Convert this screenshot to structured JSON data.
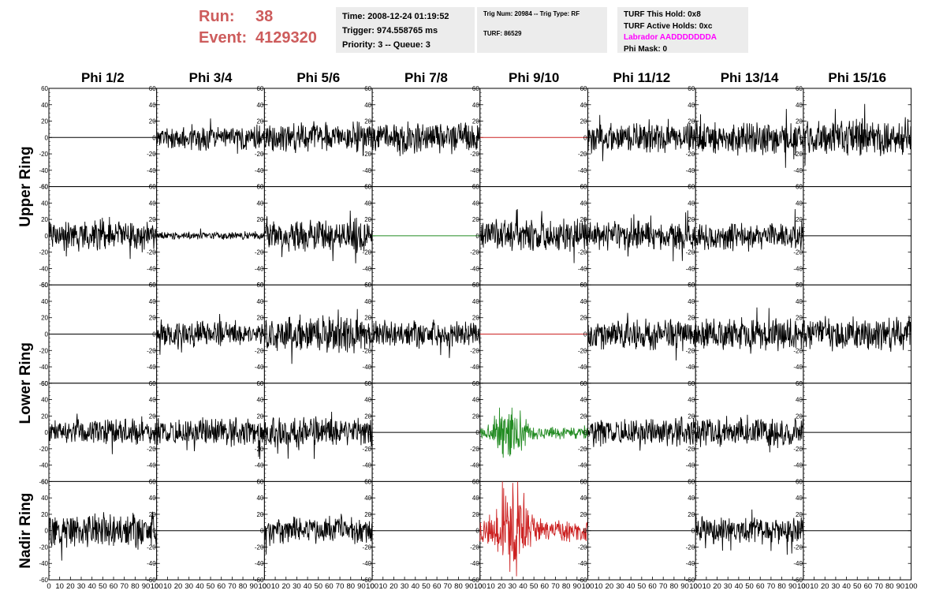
{
  "header": {
    "run_label": "Run:",
    "run_value": "38",
    "event_label": "Event:",
    "event_value": "4129320"
  },
  "info": {
    "time": "Time: 2008-12-24 01:19:52",
    "trigger": "Trigger: 974.558765 ms",
    "priority": "Priority: 3 -- Queue: 3",
    "trig_num": "Trig Num: 20984 -- Trig Type: RF",
    "turf": "TURF: 86529",
    "turf_hold": "TURF This Hold: 0x8",
    "turf_active": "TURF Active Holds: 0xc",
    "labrador": "Labrador AADDDDDDDA",
    "phi_mask": "Phi Mask: 0"
  },
  "colors": {
    "header_red": "#cd5c5c",
    "info_bg": "#ececec",
    "labrador_magenta": "#ff00ff",
    "trace_black": "#000000",
    "trace_red": "#cc2222",
    "trace_green": "#228b22"
  },
  "chart_data": {
    "type": "line",
    "columns": [
      "Phi 1/2",
      "Phi 3/4",
      "Phi 5/6",
      "Phi 7/8",
      "Phi 9/10",
      "Phi 11/12",
      "Phi 13/14",
      "Phi 15/16"
    ],
    "ring_labels": [
      "Upper Ring",
      "Lower Ring",
      "Nadir Ring"
    ],
    "xlim": [
      0,
      100
    ],
    "ylim": [
      -60,
      60
    ],
    "xticks": [
      "0",
      "10",
      "20",
      "30",
      "40",
      "50",
      "60",
      "70",
      "80",
      "90",
      "100"
    ],
    "yticks": [
      "60",
      "40",
      "20",
      "0",
      "-20",
      "-40",
      "-60"
    ],
    "panels": [
      [
        {
          "mode": "flat",
          "color": "black"
        },
        {
          "mode": "noise",
          "amp": 12,
          "seed": 11,
          "color": "black"
        },
        {
          "mode": "noise",
          "amp": 15,
          "seed": 12,
          "color": "black"
        },
        {
          "mode": "noise",
          "amp": 15,
          "seed": 13,
          "color": "black"
        },
        {
          "mode": "flat",
          "color": "red"
        },
        {
          "mode": "noise",
          "amp": 14,
          "seed": 14,
          "color": "black"
        },
        {
          "mode": "noise",
          "amp": 17,
          "seed": 15,
          "color": "black"
        },
        {
          "mode": "noise",
          "amp": 18,
          "seed": 16,
          "color": "black"
        }
      ],
      [
        {
          "mode": "noise",
          "amp": 15,
          "seed": 21,
          "color": "black"
        },
        {
          "mode": "noise",
          "amp": 4,
          "seed": 22,
          "color": "black"
        },
        {
          "mode": "noise",
          "amp": 17,
          "seed": 23,
          "color": "black"
        },
        {
          "mode": "flat",
          "color": "green"
        },
        {
          "mode": "noise",
          "amp": 16,
          "seed": 24,
          "color": "black"
        },
        {
          "mode": "noise",
          "amp": 14,
          "seed": 25,
          "color": "black"
        },
        {
          "mode": "noise",
          "amp": 14,
          "seed": 26,
          "color": "black"
        },
        {
          "mode": "flat",
          "color": "black"
        }
      ],
      [
        {
          "mode": "flat",
          "color": "black"
        },
        {
          "mode": "noise",
          "amp": 12,
          "seed": 31,
          "color": "black"
        },
        {
          "mode": "noise",
          "amp": 18,
          "seed": 32,
          "color": "black"
        },
        {
          "mode": "noise",
          "amp": 13,
          "seed": 33,
          "color": "black"
        },
        {
          "mode": "flat",
          "color": "red"
        },
        {
          "mode": "noise",
          "amp": 15,
          "seed": 34,
          "color": "black"
        },
        {
          "mode": "noise",
          "amp": 16,
          "seed": 35,
          "color": "black"
        },
        {
          "mode": "noise",
          "amp": 17,
          "seed": 36,
          "color": "black"
        }
      ],
      [
        {
          "mode": "noise",
          "amp": 13,
          "seed": 41,
          "color": "black"
        },
        {
          "mode": "noise",
          "amp": 14,
          "seed": 42,
          "color": "black"
        },
        {
          "mode": "noise",
          "amp": 15,
          "seed": 43,
          "color": "black"
        },
        {
          "mode": "flat",
          "color": "black"
        },
        {
          "mode": "burst",
          "amp": 10,
          "seed": 44,
          "color": "green"
        },
        {
          "mode": "noise",
          "amp": 14,
          "seed": 45,
          "color": "black"
        },
        {
          "mode": "noise",
          "amp": 15,
          "seed": 46,
          "color": "black"
        },
        {
          "mode": "flat",
          "color": "black"
        }
      ],
      [
        {
          "mode": "noise",
          "amp": 17,
          "seed": 51,
          "color": "black"
        },
        {
          "mode": "flat",
          "color": "black"
        },
        {
          "mode": "noise",
          "amp": 13,
          "seed": 52,
          "color": "black"
        },
        {
          "mode": "flat",
          "color": "black"
        },
        {
          "mode": "burst",
          "amp": 18,
          "seed": 53,
          "color": "red"
        },
        {
          "mode": "flat",
          "color": "black"
        },
        {
          "mode": "noise",
          "amp": 14,
          "seed": 54,
          "color": "black"
        },
        {
          "mode": "flat",
          "color": "black"
        }
      ]
    ]
  }
}
